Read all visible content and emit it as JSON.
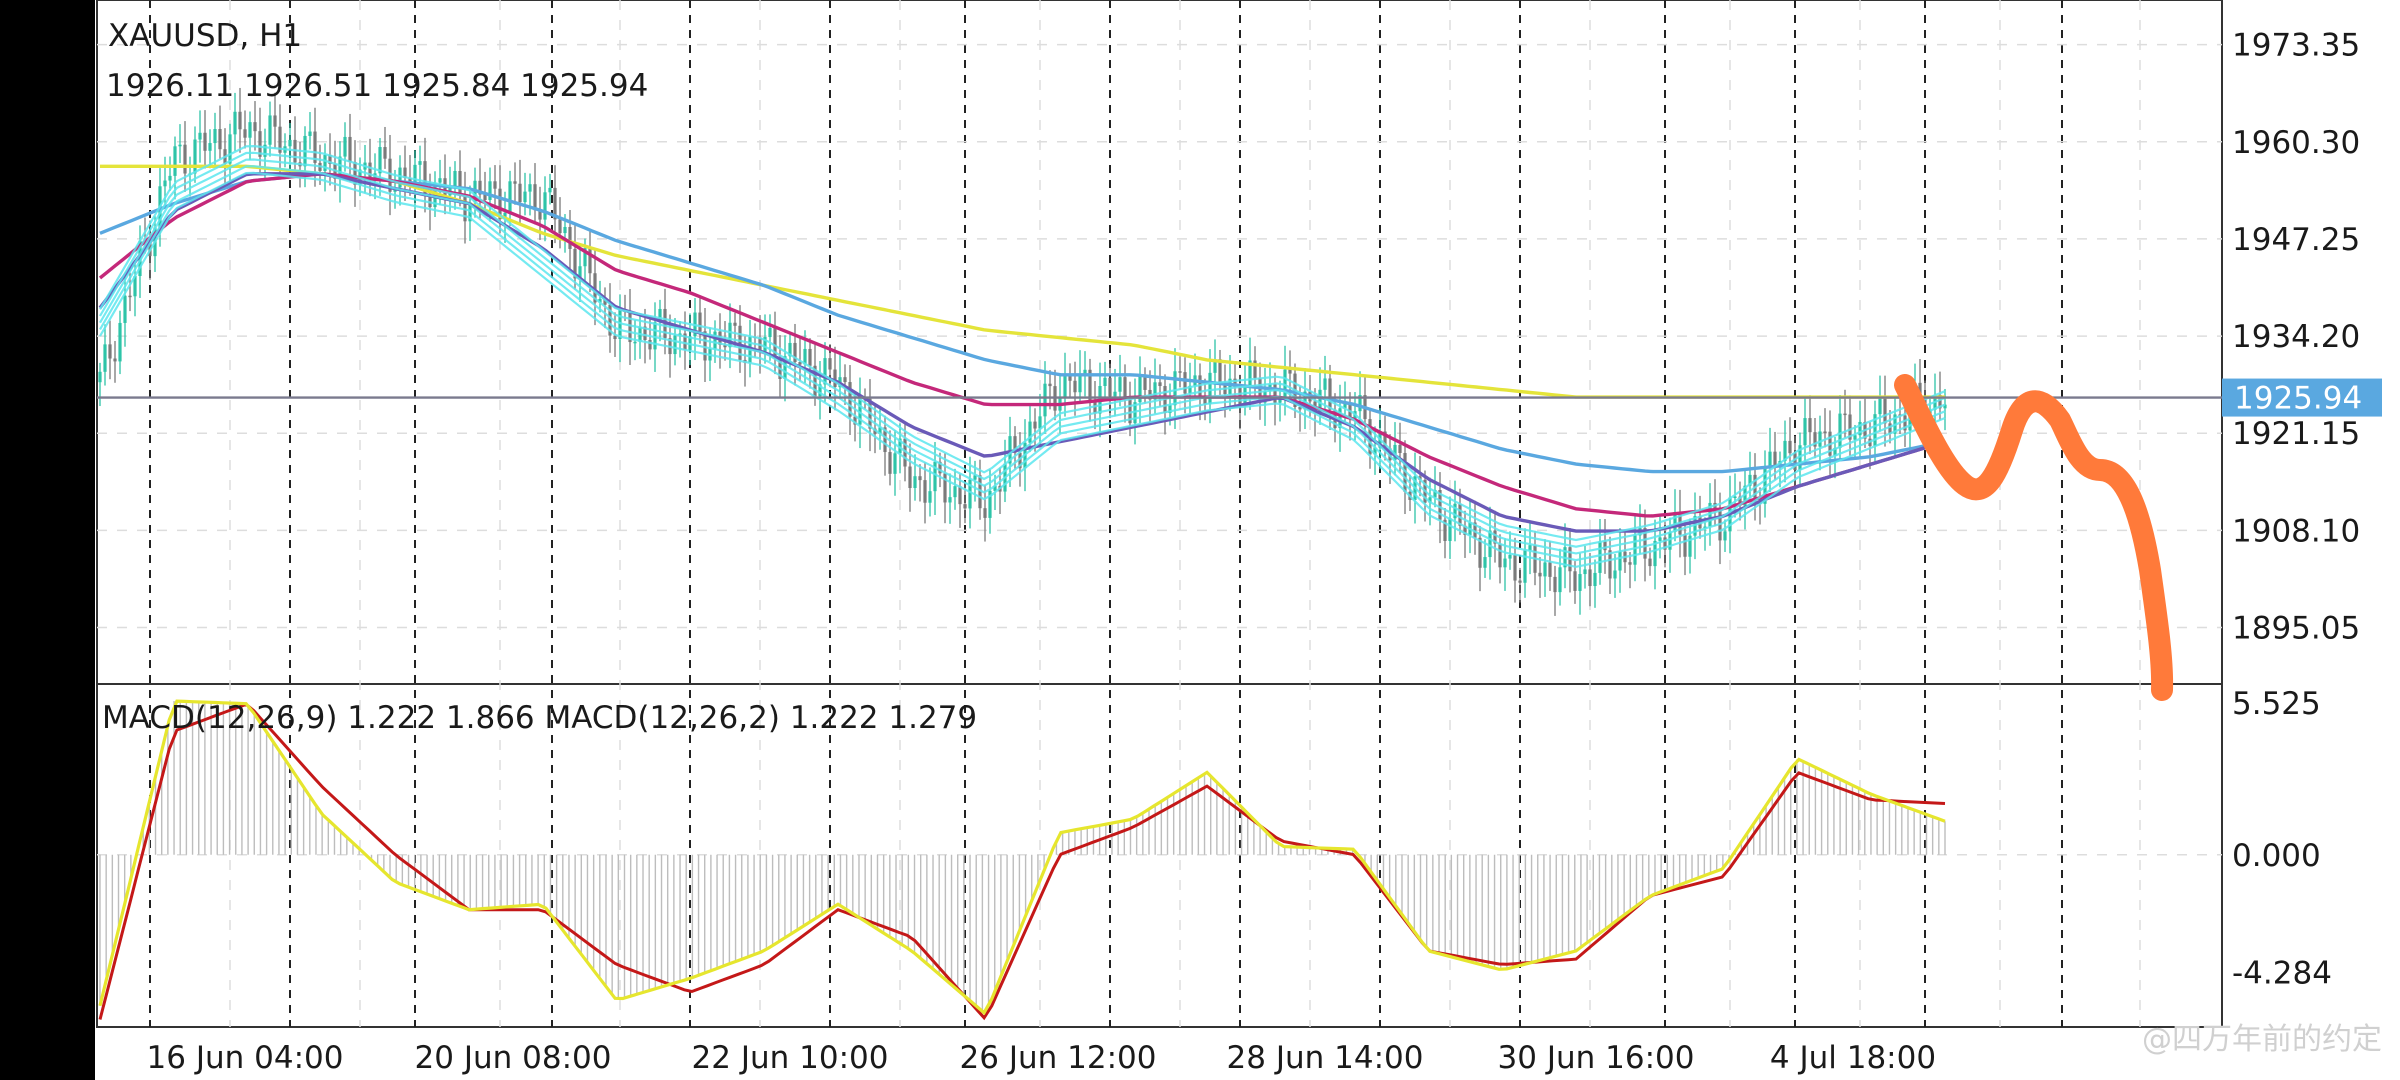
{
  "symbol_title": "XAUUSD, H1",
  "ohlc_readout": "1926.11 1926.51 1925.84 1925.94",
  "macd_readout": "MACD(12,26,9) 1.222 1.866 MACD(12,26,2) 1.222 1.279",
  "watermark": "@四万年前的约定",
  "colors": {
    "ema_yellow": "#e4e43a",
    "ema_blue": "#5aa8e0",
    "ema_magenta": "#c4287a",
    "ema_purple": "#6a5ab8",
    "ema_cyan": "#5ce6ee",
    "candle_up": "#2ec4a8",
    "candle_down": "#7a7a7a",
    "macd_yellow": "#e6e62e",
    "macd_red": "#c41818",
    "drawing_orange": "#ff7a3a",
    "current_price_line": "#7a7a8e",
    "current_price_label_bg": "#5aa8e0"
  },
  "chart_data": [
    {
      "type": "line",
      "name": "price",
      "title": "XAUUSD, H1",
      "x_ticks": [
        "16 Jun 04:00",
        "20 Jun 08:00",
        "22 Jun 10:00",
        "26 Jun 12:00",
        "28 Jun 14:00",
        "30 Jun 16:00",
        "4 Jul 18:00"
      ],
      "y_ticks": [
        "1973.35",
        "1960.30",
        "1947.25",
        "1934.20",
        "1921.15",
        "1908.10",
        "1895.05"
      ],
      "ylim": [
        1888,
        1978
      ],
      "current_price": "1925.94",
      "x": [
        0,
        4,
        8,
        12,
        16,
        20,
        24,
        28,
        32,
        36,
        40,
        44,
        48,
        52,
        56,
        60,
        64,
        68,
        72,
        76,
        80,
        84,
        88,
        92,
        96,
        100
      ],
      "close": [
        1928,
        1958,
        1962,
        1958,
        1956,
        1953,
        1953,
        1935,
        1934,
        1933,
        1928,
        1915,
        1912,
        1928,
        1926,
        1928,
        1927,
        1924,
        1912,
        1904,
        1902,
        1906,
        1910,
        1920,
        1922,
        1926
      ],
      "series": [
        {
          "name": "yellow",
          "values": [
            1957,
            1957,
            1957,
            1956,
            1955,
            1952,
            1948,
            1945,
            1943,
            1941,
            1939,
            1937,
            1935,
            1934,
            1933,
            1931,
            1930,
            1929,
            1928,
            1927,
            1926,
            1926,
            1926,
            1926,
            1926,
            1926
          ]
        },
        {
          "name": "blue",
          "values": [
            1948,
            1952,
            1955,
            1956,
            1955,
            1954,
            1951,
            1947,
            1944,
            1941,
            1937,
            1934,
            1931,
            1929,
            1929,
            1928,
            1927,
            1925,
            1922,
            1919,
            1917,
            1916,
            1916,
            1917,
            1918,
            1920
          ]
        },
        {
          "name": "magenta",
          "values": [
            1942,
            1950,
            1955,
            1956,
            1955,
            1953,
            1949,
            1943,
            1940,
            1936,
            1932,
            1928,
            1925,
            1925,
            1926,
            1926,
            1926,
            1923,
            1918,
            1914,
            1911,
            1910,
            1911,
            1914,
            1917,
            1920
          ]
        },
        {
          "name": "purple",
          "values": [
            1938,
            1951,
            1956,
            1956,
            1954,
            1952,
            1946,
            1938,
            1935,
            1932,
            1928,
            1922,
            1918,
            1920,
            1922,
            1924,
            1926,
            1922,
            1915,
            1910,
            1908,
            1908,
            1910,
            1914,
            1917,
            1920
          ]
        },
        {
          "name": "cyan",
          "values": [
            1936,
            1953,
            1958,
            1957,
            1954,
            1952,
            1944,
            1936,
            1934,
            1932,
            1926,
            1919,
            1914,
            1922,
            1924,
            1926,
            1927,
            1922,
            1912,
            1907,
            1905,
            1907,
            1910,
            1917,
            1921,
            1925
          ]
        }
      ]
    },
    {
      "type": "line",
      "name": "macd",
      "title": "MACD(12,26,9) 1.222 1.866 MACD(12,26,2) 1.222 1.279",
      "y_ticks": [
        "5.525",
        "0.000",
        "-4.284"
      ],
      "ylim": [
        -6.2,
        6.0
      ],
      "x": [
        0,
        4,
        8,
        12,
        16,
        20,
        24,
        28,
        32,
        36,
        40,
        44,
        48,
        52,
        56,
        60,
        64,
        68,
        72,
        76,
        80,
        84,
        88,
        92,
        96,
        100
      ],
      "series": [
        {
          "name": "yellow",
          "values": [
            -5.5,
            5.6,
            5.5,
            1.5,
            -1.0,
            -2.0,
            -1.8,
            -5.3,
            -4.5,
            -3.5,
            -1.8,
            -3.5,
            -5.8,
            0.8,
            1.3,
            3.0,
            0.3,
            0.2,
            -3.5,
            -4.2,
            -3.5,
            -1.5,
            -0.5,
            3.5,
            2.2,
            1.222
          ]
        },
        {
          "name": "red",
          "values": [
            -6.0,
            4.5,
            5.5,
            2.5,
            0.0,
            -2.0,
            -2.0,
            -4.0,
            -5.0,
            -4.0,
            -2.0,
            -3.0,
            -6.0,
            0.0,
            1.0,
            2.5,
            0.5,
            0.0,
            -3.5,
            -4.0,
            -3.8,
            -1.5,
            -0.8,
            3.0,
            2.0,
            1.866
          ]
        }
      ]
    }
  ]
}
